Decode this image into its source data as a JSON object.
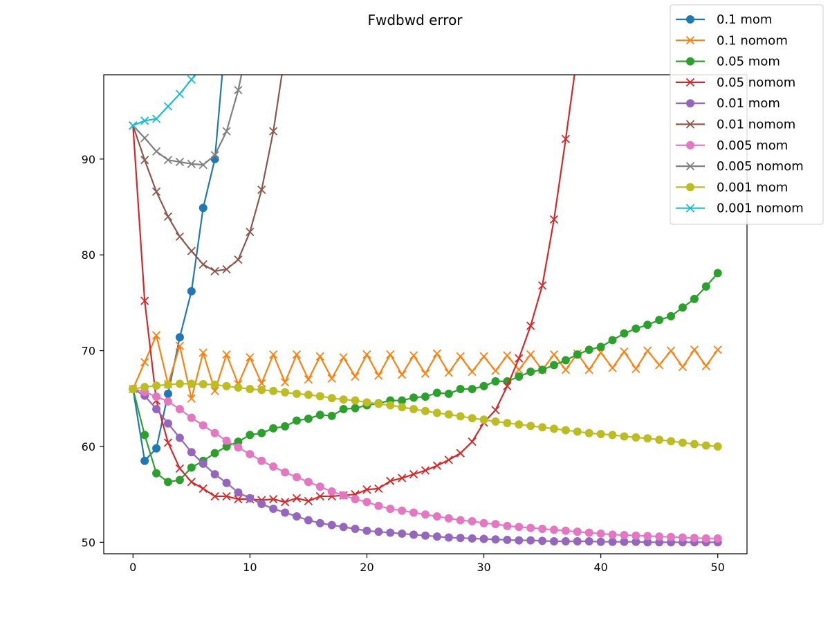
{
  "chart_data": {
    "type": "line",
    "title": "Fwdbwd error",
    "xlabel": "",
    "ylabel": "",
    "xlim": [
      -2.5,
      52.5
    ],
    "ylim": [
      48.8,
      98.8
    ],
    "xticks": [
      0,
      10,
      20,
      30,
      40,
      50
    ],
    "yticks": [
      50,
      60,
      70,
      80,
      90
    ],
    "grid": false,
    "legend": "top-right",
    "series": [
      {
        "name": "0.1 mom",
        "marker": "circle",
        "color": "#1f77b4",
        "x": [
          0,
          1,
          2,
          3,
          4,
          5,
          6,
          7,
          8
        ],
        "y": [
          66,
          58.5,
          59.8,
          65.5,
          71.4,
          76.2,
          84.9,
          90.0,
          104
        ]
      },
      {
        "name": "0.1 nomom",
        "marker": "x",
        "color": "#ff7f0e",
        "x": [
          0,
          1,
          2,
          3,
          4,
          5,
          6,
          7,
          8,
          9,
          10,
          11,
          12,
          13,
          14,
          15,
          16,
          17,
          18,
          19,
          20,
          21,
          22,
          23,
          24,
          25,
          26,
          27,
          28,
          29,
          30,
          31,
          32,
          33,
          34,
          35,
          36,
          37,
          38,
          39,
          40,
          41,
          42,
          43,
          44,
          45,
          46,
          47,
          48,
          49,
          50
        ],
        "y": [
          66,
          68.8,
          71.6,
          66.5,
          70.5,
          65.0,
          69.8,
          65.8,
          69.6,
          66.5,
          69.3,
          66.6,
          69.6,
          66.7,
          69.6,
          67.0,
          69.4,
          67.1,
          69.3,
          67.3,
          69.6,
          67.4,
          69.6,
          67.5,
          69.5,
          67.6,
          69.7,
          67.7,
          69.4,
          67.8,
          69.4,
          67.9,
          69.5,
          68.0,
          69.6,
          68.0,
          69.6,
          68.0,
          69.7,
          68.0,
          69.8,
          68.2,
          69.9,
          68.1,
          70.0,
          68.5,
          70.0,
          68.3,
          70.1,
          68.4,
          70.1
        ]
      },
      {
        "name": "0.05 mom",
        "marker": "circle",
        "color": "#2ca02c",
        "x": [
          0,
          1,
          2,
          3,
          4,
          5,
          6,
          7,
          8,
          9,
          10,
          11,
          12,
          13,
          14,
          15,
          16,
          17,
          18,
          19,
          20,
          21,
          22,
          23,
          24,
          25,
          26,
          27,
          28,
          29,
          30,
          31,
          32,
          33,
          34,
          35,
          36,
          37,
          38,
          39,
          40,
          41,
          42,
          43,
          44,
          45,
          46,
          47,
          48,
          49,
          50
        ],
        "y": [
          66,
          61.2,
          57.2,
          56.3,
          56.5,
          57.8,
          58.5,
          59.3,
          60.0,
          60.5,
          61.2,
          61.4,
          61.9,
          62.1,
          62.7,
          62.9,
          63.3,
          63.2,
          63.9,
          64.0,
          64.3,
          64.5,
          64.8,
          64.8,
          65.1,
          65.2,
          65.6,
          65.5,
          66.0,
          66.0,
          66.3,
          66.8,
          66.8,
          67.3,
          67.8,
          68.0,
          68.5,
          69.0,
          69.6,
          70.1,
          70.4,
          71.1,
          71.8,
          72.3,
          72.7,
          73.2,
          73.6,
          74.5,
          75.4,
          76.7,
          78.1
        ]
      },
      {
        "name": "0.05 nomom",
        "marker": "x",
        "color": "#d62728",
        "x": [
          0,
          1,
          2,
          3,
          4,
          5,
          6,
          7,
          8,
          9,
          10,
          11,
          12,
          13,
          14,
          15,
          16,
          17,
          18,
          19,
          20,
          21,
          22,
          23,
          24,
          25,
          26,
          27,
          28,
          29,
          30,
          31,
          32,
          33,
          34,
          35,
          36,
          37,
          38
        ],
        "y": [
          93.5,
          75.2,
          64.8,
          60.4,
          57.7,
          56.3,
          55.6,
          54.8,
          54.8,
          54.5,
          54.5,
          54.4,
          54.5,
          54.2,
          54.6,
          54.3,
          54.8,
          54.8,
          54.9,
          55.0,
          55.5,
          55.6,
          56.4,
          56.7,
          57.1,
          57.5,
          58.0,
          58.6,
          59.3,
          60.5,
          62.5,
          63.8,
          66.3,
          69.2,
          72.6,
          76.8,
          83.7,
          92.1,
          101
        ]
      },
      {
        "name": "0.01 mom",
        "marker": "circle",
        "color": "#9467bd",
        "x": [
          0,
          1,
          2,
          3,
          4,
          5,
          6,
          7,
          8,
          9,
          10,
          11,
          12,
          13,
          14,
          15,
          16,
          17,
          18,
          19,
          20,
          21,
          22,
          23,
          24,
          25,
          26,
          27,
          28,
          29,
          30,
          31,
          32,
          33,
          34,
          35,
          36,
          37,
          38,
          39,
          40,
          41,
          42,
          43,
          44,
          45,
          46,
          47,
          48,
          49,
          50
        ],
        "y": [
          66,
          65.3,
          63.9,
          62.4,
          60.9,
          59.4,
          58.2,
          57.1,
          56.2,
          55.2,
          54.6,
          54.0,
          53.5,
          53.1,
          52.7,
          52.3,
          52.0,
          51.8,
          51.6,
          51.4,
          51.2,
          51.1,
          51.0,
          50.9,
          50.8,
          50.7,
          50.6,
          50.5,
          50.45,
          50.4,
          50.35,
          50.3,
          50.25,
          50.2,
          50.2,
          50.15,
          50.1,
          50.1,
          50.1,
          50.1,
          50.05,
          50.05,
          50.05,
          50.05,
          50.0,
          50.0,
          50.0,
          50.0,
          50.0,
          50.0,
          50.0
        ]
      },
      {
        "name": "0.01 nomom",
        "marker": "x",
        "color": "#8c564b",
        "x": [
          0,
          1,
          2,
          3,
          4,
          5,
          6,
          7,
          8,
          9,
          10,
          11,
          12,
          13
        ],
        "y": [
          93.5,
          89.9,
          86.6,
          84.0,
          81.9,
          80.4,
          79.0,
          78.3,
          78.5,
          79.5,
          82.4,
          86.8,
          92.9,
          101
        ]
      },
      {
        "name": "0.005 mom",
        "marker": "circle",
        "color": "#e377c2",
        "x": [
          0,
          1,
          2,
          3,
          4,
          5,
          6,
          7,
          8,
          9,
          10,
          11,
          12,
          13,
          14,
          15,
          16,
          17,
          18,
          19,
          20,
          21,
          22,
          23,
          24,
          25,
          26,
          27,
          28,
          29,
          30,
          31,
          32,
          33,
          34,
          35,
          36,
          37,
          38,
          39,
          40,
          41,
          42,
          43,
          44,
          45,
          46,
          47,
          48,
          49,
          50
        ],
        "y": [
          66,
          65.7,
          65.2,
          64.7,
          63.9,
          63.0,
          62.2,
          61.4,
          60.6,
          59.9,
          59.2,
          58.5,
          57.9,
          57.3,
          56.8,
          56.3,
          55.8,
          55.3,
          54.9,
          54.5,
          54.2,
          53.8,
          53.5,
          53.3,
          53.1,
          52.9,
          52.7,
          52.5,
          52.3,
          52.2,
          52.0,
          51.9,
          51.7,
          51.6,
          51.5,
          51.4,
          51.3,
          51.2,
          51.1,
          51.0,
          50.9,
          50.8,
          50.75,
          50.7,
          50.65,
          50.6,
          50.55,
          50.5,
          50.45,
          50.4,
          50.4
        ]
      },
      {
        "name": "0.005 nomom",
        "marker": "x",
        "color": "#7f7f7f",
        "x": [
          0,
          1,
          2,
          3,
          4,
          5,
          6,
          7,
          8,
          9,
          10
        ],
        "y": [
          93.5,
          92.2,
          90.8,
          89.9,
          89.7,
          89.5,
          89.4,
          90.4,
          92.9,
          97.2,
          103
        ]
      },
      {
        "name": "0.001 mom",
        "marker": "circle",
        "color": "#bcbd22",
        "x": [
          0,
          1,
          2,
          3,
          4,
          5,
          6,
          7,
          8,
          9,
          10,
          11,
          12,
          13,
          14,
          15,
          16,
          17,
          18,
          19,
          20,
          21,
          22,
          23,
          24,
          25,
          26,
          27,
          28,
          29,
          30,
          31,
          32,
          33,
          34,
          35,
          36,
          37,
          38,
          39,
          40,
          41,
          42,
          43,
          44,
          45,
          46,
          47,
          48,
          49,
          50
        ],
        "y": [
          66,
          66.2,
          66.35,
          66.45,
          66.55,
          66.55,
          66.5,
          66.45,
          66.3,
          66.15,
          66.0,
          65.9,
          65.8,
          65.65,
          65.5,
          65.4,
          65.25,
          65.05,
          64.9,
          64.8,
          64.6,
          64.45,
          64.3,
          64.1,
          63.9,
          63.7,
          63.5,
          63.35,
          63.15,
          62.95,
          62.8,
          62.6,
          62.45,
          62.3,
          62.15,
          62.0,
          61.85,
          61.7,
          61.55,
          61.4,
          61.3,
          61.2,
          61.05,
          60.95,
          60.85,
          60.7,
          60.55,
          60.4,
          60.25,
          60.1,
          60.0
        ]
      },
      {
        "name": "0.001 nomom",
        "marker": "x",
        "color": "#17becf",
        "x": [
          0,
          1,
          2,
          3,
          4,
          5,
          6
        ],
        "y": [
          93.5,
          94.0,
          94.2,
          95.5,
          96.8,
          98.3,
          99.9
        ]
      }
    ]
  }
}
